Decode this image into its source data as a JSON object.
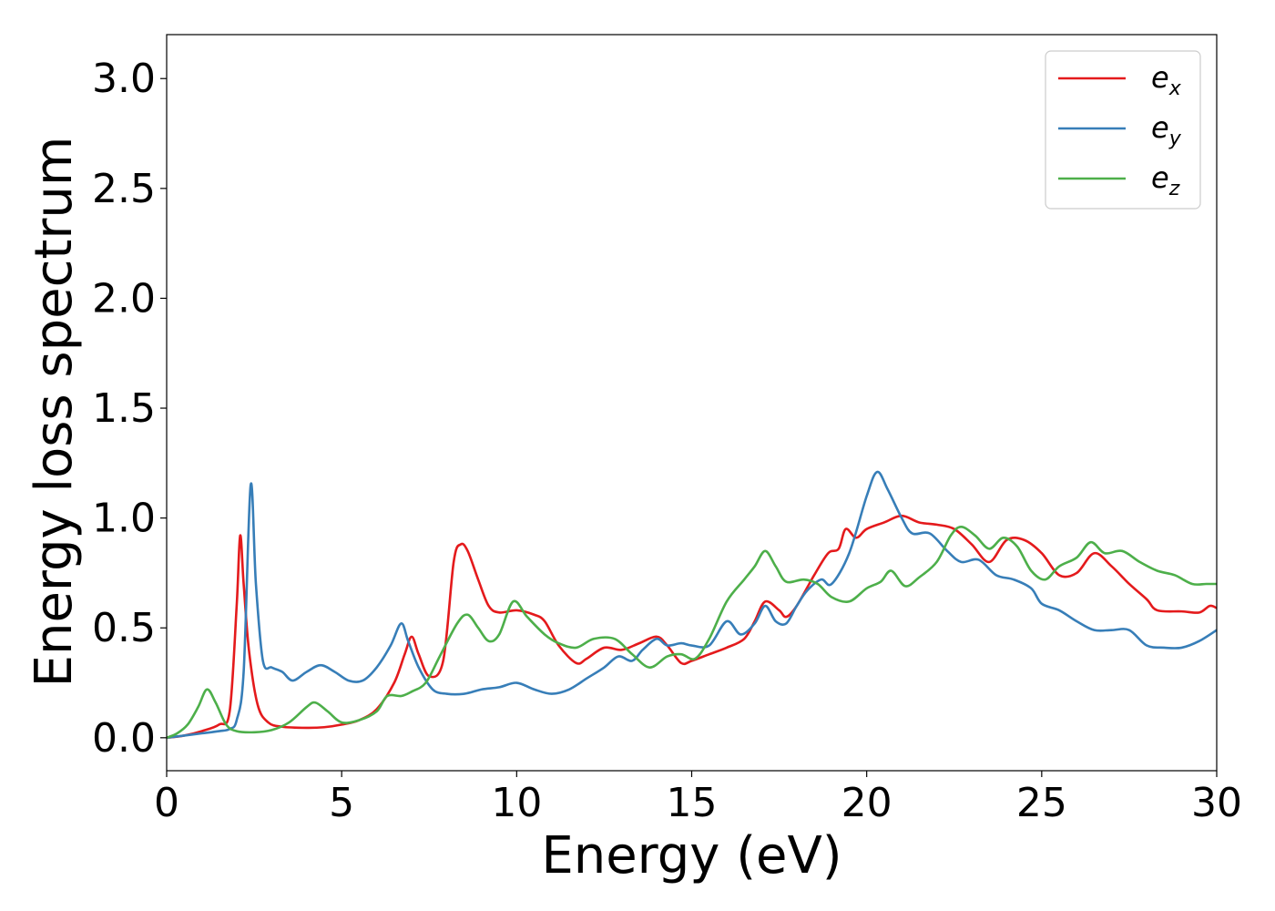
{
  "chart_data": {
    "type": "line",
    "title": "",
    "xlabel": "Energy (eV)",
    "ylabel": "Energy loss spectrum",
    "xlim": [
      0,
      30
    ],
    "ylim": [
      -0.15,
      3.2
    ],
    "xticks": [
      0,
      5,
      10,
      15,
      20,
      25,
      30
    ],
    "xtick_labels": [
      "0",
      "5",
      "10",
      "15",
      "20",
      "25",
      "30"
    ],
    "yticks": [
      0.0,
      0.5,
      1.0,
      1.5,
      2.0,
      2.5,
      3.0
    ],
    "ytick_labels": [
      "0.0",
      "0.5",
      "1.0",
      "1.5",
      "2.0",
      "2.5",
      "3.0"
    ],
    "grid": false,
    "legend_position": "top-right",
    "series": [
      {
        "name": "e_x",
        "legend_base": "e",
        "legend_sub": "x",
        "color": "#e41a1c",
        "points": [
          [
            0,
            0
          ],
          [
            0.5,
            0.01
          ],
          [
            1.0,
            0.03
          ],
          [
            1.5,
            0.06
          ],
          [
            1.8,
            0.12
          ],
          [
            2.0,
            0.6
          ],
          [
            2.1,
            0.92
          ],
          [
            2.2,
            0.7
          ],
          [
            2.35,
            0.4
          ],
          [
            2.6,
            0.15
          ],
          [
            2.9,
            0.07
          ],
          [
            3.3,
            0.05
          ],
          [
            4.0,
            0.045
          ],
          [
            4.5,
            0.048
          ],
          [
            5.0,
            0.06
          ],
          [
            5.5,
            0.08
          ],
          [
            6.0,
            0.13
          ],
          [
            6.5,
            0.25
          ],
          [
            6.8,
            0.38
          ],
          [
            7.0,
            0.46
          ],
          [
            7.2,
            0.38
          ],
          [
            7.5,
            0.28
          ],
          [
            7.9,
            0.35
          ],
          [
            8.2,
            0.8
          ],
          [
            8.4,
            0.88
          ],
          [
            8.6,
            0.85
          ],
          [
            8.9,
            0.72
          ],
          [
            9.2,
            0.6
          ],
          [
            9.5,
            0.57
          ],
          [
            10.0,
            0.58
          ],
          [
            10.5,
            0.56
          ],
          [
            10.8,
            0.53
          ],
          [
            11.2,
            0.42
          ],
          [
            11.7,
            0.34
          ],
          [
            12.0,
            0.36
          ],
          [
            12.5,
            0.41
          ],
          [
            13.0,
            0.4
          ],
          [
            13.5,
            0.43
          ],
          [
            14.0,
            0.46
          ],
          [
            14.3,
            0.42
          ],
          [
            14.7,
            0.34
          ],
          [
            15.0,
            0.35
          ],
          [
            15.5,
            0.38
          ],
          [
            16.0,
            0.41
          ],
          [
            16.5,
            0.45
          ],
          [
            16.8,
            0.53
          ],
          [
            17.1,
            0.62
          ],
          [
            17.5,
            0.58
          ],
          [
            17.7,
            0.55
          ],
          [
            18.0,
            0.6
          ],
          [
            18.5,
            0.74
          ],
          [
            18.9,
            0.84
          ],
          [
            19.2,
            0.86
          ],
          [
            19.4,
            0.95
          ],
          [
            19.7,
            0.91
          ],
          [
            20.0,
            0.95
          ],
          [
            20.5,
            0.98
          ],
          [
            21.0,
            1.01
          ],
          [
            21.5,
            0.98
          ],
          [
            22.0,
            0.97
          ],
          [
            22.5,
            0.95
          ],
          [
            23.0,
            0.88
          ],
          [
            23.5,
            0.8
          ],
          [
            24.0,
            0.9
          ],
          [
            24.5,
            0.9
          ],
          [
            25.0,
            0.84
          ],
          [
            25.5,
            0.74
          ],
          [
            26.0,
            0.75
          ],
          [
            26.5,
            0.84
          ],
          [
            27.0,
            0.78
          ],
          [
            27.5,
            0.7
          ],
          [
            28.0,
            0.63
          ],
          [
            28.3,
            0.58
          ],
          [
            29.0,
            0.575
          ],
          [
            29.5,
            0.57
          ],
          [
            29.8,
            0.6
          ],
          [
            30.0,
            0.59
          ]
        ]
      },
      {
        "name": "e_y",
        "legend_base": "e",
        "legend_sub": "y",
        "color": "#377eb8",
        "points": [
          [
            0,
            0
          ],
          [
            0.5,
            0.01
          ],
          [
            1.0,
            0.02
          ],
          [
            1.5,
            0.03
          ],
          [
            1.8,
            0.04
          ],
          [
            2.0,
            0.08
          ],
          [
            2.2,
            0.3
          ],
          [
            2.4,
            1.15
          ],
          [
            2.55,
            0.7
          ],
          [
            2.75,
            0.35
          ],
          [
            3.0,
            0.32
          ],
          [
            3.3,
            0.3
          ],
          [
            3.6,
            0.26
          ],
          [
            4.0,
            0.3
          ],
          [
            4.4,
            0.33
          ],
          [
            4.8,
            0.3
          ],
          [
            5.2,
            0.26
          ],
          [
            5.6,
            0.26
          ],
          [
            6.0,
            0.32
          ],
          [
            6.4,
            0.42
          ],
          [
            6.7,
            0.52
          ],
          [
            6.9,
            0.44
          ],
          [
            7.2,
            0.32
          ],
          [
            7.6,
            0.22
          ],
          [
            8.0,
            0.2
          ],
          [
            8.5,
            0.2
          ],
          [
            9.0,
            0.22
          ],
          [
            9.5,
            0.23
          ],
          [
            10.0,
            0.25
          ],
          [
            10.5,
            0.22
          ],
          [
            11.0,
            0.2
          ],
          [
            11.5,
            0.22
          ],
          [
            12.0,
            0.27
          ],
          [
            12.5,
            0.32
          ],
          [
            12.9,
            0.37
          ],
          [
            13.3,
            0.35
          ],
          [
            13.6,
            0.4
          ],
          [
            14.0,
            0.45
          ],
          [
            14.3,
            0.42
          ],
          [
            14.7,
            0.43
          ],
          [
            15.0,
            0.42
          ],
          [
            15.5,
            0.42
          ],
          [
            16.0,
            0.53
          ],
          [
            16.4,
            0.47
          ],
          [
            16.8,
            0.52
          ],
          [
            17.1,
            0.6
          ],
          [
            17.4,
            0.53
          ],
          [
            17.7,
            0.52
          ],
          [
            18.0,
            0.6
          ],
          [
            18.3,
            0.67
          ],
          [
            18.7,
            0.72
          ],
          [
            19.0,
            0.7
          ],
          [
            19.5,
            0.84
          ],
          [
            20.0,
            1.1
          ],
          [
            20.3,
            1.21
          ],
          [
            20.6,
            1.13
          ],
          [
            21.0,
            1.0
          ],
          [
            21.3,
            0.93
          ],
          [
            21.8,
            0.93
          ],
          [
            22.3,
            0.85
          ],
          [
            22.7,
            0.8
          ],
          [
            23.2,
            0.81
          ],
          [
            23.7,
            0.74
          ],
          [
            24.2,
            0.72
          ],
          [
            24.7,
            0.68
          ],
          [
            25.0,
            0.61
          ],
          [
            25.5,
            0.58
          ],
          [
            26.0,
            0.53
          ],
          [
            26.5,
            0.49
          ],
          [
            27.0,
            0.49
          ],
          [
            27.5,
            0.49
          ],
          [
            28.0,
            0.42
          ],
          [
            28.5,
            0.41
          ],
          [
            29.0,
            0.41
          ],
          [
            29.5,
            0.44
          ],
          [
            30.0,
            0.49
          ]
        ]
      },
      {
        "name": "e_z",
        "legend_base": "e",
        "legend_sub": "z",
        "color": "#4daf4a",
        "points": [
          [
            0,
            0
          ],
          [
            0.3,
            0.02
          ],
          [
            0.6,
            0.06
          ],
          [
            0.9,
            0.14
          ],
          [
            1.15,
            0.22
          ],
          [
            1.4,
            0.16
          ],
          [
            1.7,
            0.06
          ],
          [
            2.0,
            0.03
          ],
          [
            2.5,
            0.025
          ],
          [
            3.0,
            0.035
          ],
          [
            3.5,
            0.07
          ],
          [
            4.0,
            0.14
          ],
          [
            4.25,
            0.16
          ],
          [
            4.6,
            0.12
          ],
          [
            5.0,
            0.07
          ],
          [
            5.5,
            0.08
          ],
          [
            6.0,
            0.12
          ],
          [
            6.3,
            0.19
          ],
          [
            6.7,
            0.19
          ],
          [
            7.0,
            0.21
          ],
          [
            7.4,
            0.25
          ],
          [
            7.8,
            0.37
          ],
          [
            8.3,
            0.52
          ],
          [
            8.6,
            0.56
          ],
          [
            8.9,
            0.5
          ],
          [
            9.2,
            0.44
          ],
          [
            9.5,
            0.47
          ],
          [
            9.9,
            0.62
          ],
          [
            10.3,
            0.55
          ],
          [
            10.8,
            0.47
          ],
          [
            11.2,
            0.43
          ],
          [
            11.7,
            0.41
          ],
          [
            12.2,
            0.45
          ],
          [
            12.8,
            0.45
          ],
          [
            13.3,
            0.38
          ],
          [
            13.8,
            0.32
          ],
          [
            14.3,
            0.37
          ],
          [
            14.7,
            0.38
          ],
          [
            15.1,
            0.36
          ],
          [
            15.5,
            0.45
          ],
          [
            16.0,
            0.62
          ],
          [
            16.5,
            0.72
          ],
          [
            16.8,
            0.78
          ],
          [
            17.1,
            0.85
          ],
          [
            17.4,
            0.78
          ],
          [
            17.7,
            0.71
          ],
          [
            18.2,
            0.72
          ],
          [
            18.6,
            0.7
          ],
          [
            19.0,
            0.64
          ],
          [
            19.5,
            0.62
          ],
          [
            20.0,
            0.68
          ],
          [
            20.4,
            0.71
          ],
          [
            20.7,
            0.76
          ],
          [
            21.1,
            0.69
          ],
          [
            21.5,
            0.73
          ],
          [
            22.0,
            0.8
          ],
          [
            22.4,
            0.92
          ],
          [
            22.7,
            0.96
          ],
          [
            23.1,
            0.92
          ],
          [
            23.5,
            0.86
          ],
          [
            23.9,
            0.91
          ],
          [
            24.3,
            0.87
          ],
          [
            24.7,
            0.76
          ],
          [
            25.1,
            0.72
          ],
          [
            25.5,
            0.78
          ],
          [
            26.0,
            0.82
          ],
          [
            26.4,
            0.89
          ],
          [
            26.8,
            0.84
          ],
          [
            27.3,
            0.85
          ],
          [
            27.8,
            0.8
          ],
          [
            28.3,
            0.76
          ],
          [
            28.8,
            0.74
          ],
          [
            29.3,
            0.7
          ],
          [
            29.7,
            0.7
          ],
          [
            30.0,
            0.7
          ]
        ]
      }
    ]
  }
}
